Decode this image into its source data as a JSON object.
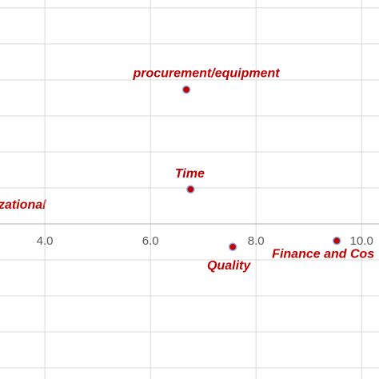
{
  "chart_data": {
    "type": "scatter",
    "series": [
      {
        "color": "#c00000",
        "x": [
          6.68,
          6.76,
          7.56,
          9.53
        ],
        "values": [
          3.73,
          0.96,
          -0.64,
          -0.47
        ],
        "point_labels": [
          "procurement/equipment",
          "Time",
          "Quality",
          "Finance and Cos"
        ]
      }
    ],
    "annotations": [
      "zational"
    ],
    "xlim": [
      3.15,
      10.33
    ],
    "xticks": [
      {
        "value": 4,
        "label": "4.0"
      },
      {
        "value": 6,
        "label": "6.0"
      },
      {
        "value": 8,
        "label": "8.0"
      },
      {
        "value": 10,
        "label": "10.0"
      }
    ],
    "ylim": [
      -4.31,
      6.22
    ],
    "yticks": [
      -4,
      -3,
      -2,
      -1,
      0,
      1,
      2,
      3,
      4,
      5,
      6
    ],
    "grid": true
  }
}
